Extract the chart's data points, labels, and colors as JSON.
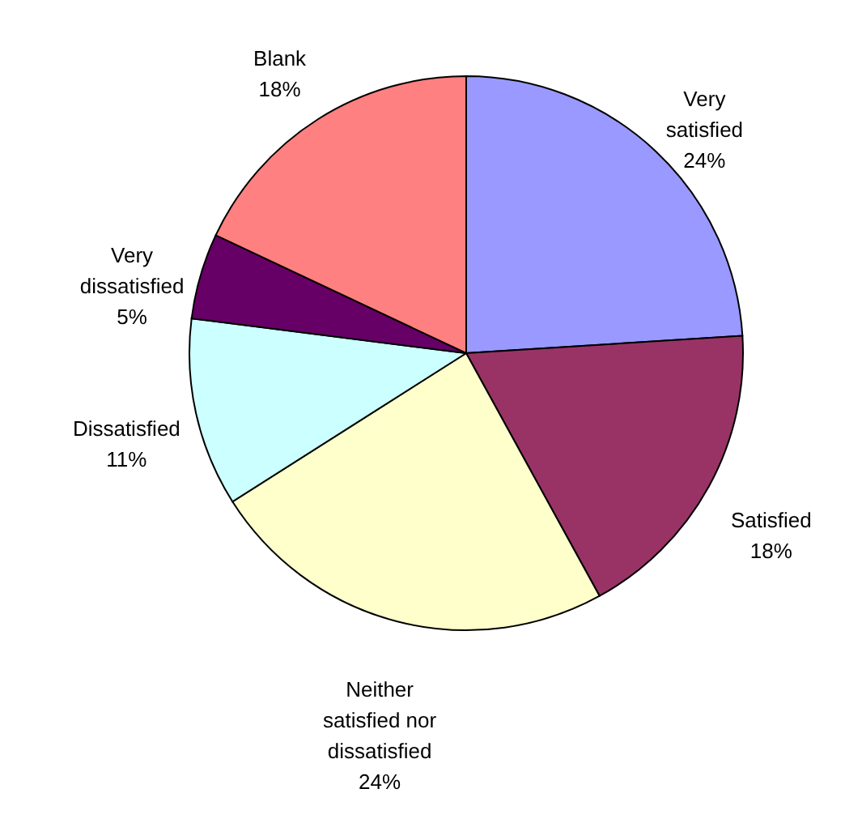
{
  "chart_data": {
    "type": "pie",
    "categories": [
      "Very satisfied",
      "Satisfied",
      "Neither satisfied nor dissatisfied",
      "Dissatisfied",
      "Very dissatisfied",
      "Blank"
    ],
    "values": [
      24,
      18,
      24,
      11,
      5,
      18
    ],
    "value_labels": [
      "24%",
      "18%",
      "24%",
      "11%",
      "5%",
      "18%"
    ],
    "colors": [
      "#9999ff",
      "#993366",
      "#ffffcc",
      "#ccffff",
      "#660066",
      "#ff8080"
    ]
  }
}
